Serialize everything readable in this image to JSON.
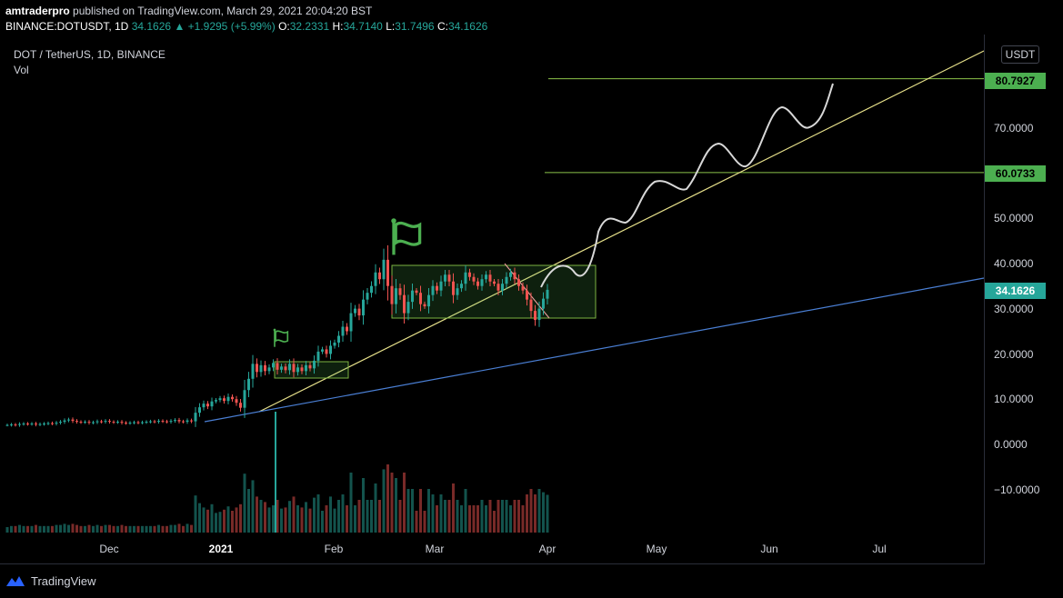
{
  "header": {
    "author": "amtraderpro",
    "published": "published on TradingView.com, March 29, 2021 20:04:20 BST",
    "symbol_line": "BINANCE:DOTUSDT, 1D",
    "last": "34.1626",
    "change": "▲ +1.9295 (+5.99%)",
    "o_label": "O:",
    "o_value": "32.2331",
    "h_label": "H:",
    "h_value": "34.7140",
    "l_label": "L:",
    "l_value": "31.7496",
    "c_label": "C:",
    "c_value": "34.1626"
  },
  "legend": {
    "symbol": "DOT / TetherUS, 1D, BINANCE",
    "volume": "Vol"
  },
  "price_axis": {
    "unit": "USDT",
    "ticks": [
      "70.0000",
      "50.0000",
      "40.0000",
      "30.0000",
      "20.0000",
      "10.0000",
      "0.0000",
      "−10.0000"
    ],
    "badges": [
      {
        "value": "80.7927",
        "color": "#4caf50"
      },
      {
        "value": "60.0733",
        "color": "#4caf50"
      },
      {
        "value": "34.1626",
        "color": "#26a69a"
      }
    ]
  },
  "time_axis": {
    "labels": [
      "Dec",
      "2021",
      "Feb",
      "Mar",
      "Apr",
      "May",
      "Jun",
      "Jul"
    ]
  },
  "brand": "TradingView",
  "chart_data": {
    "type": "candlestick",
    "symbol": "DOTUSDT",
    "timeframe": "1D",
    "y_range": [
      -20,
      83
    ],
    "last_close": 34.1626,
    "horizontal_levels": [
      80.7927,
      60.0733
    ],
    "closes": [
      4.3,
      4.4,
      4.3,
      4.5,
      4.6,
      4.5,
      4.6,
      4.4,
      4.5,
      4.6,
      4.7,
      4.6,
      4.8,
      5.0,
      5.3,
      5.5,
      5.2,
      5.0,
      4.9,
      5.0,
      4.8,
      4.9,
      5.1,
      5.0,
      5.2,
      5.0,
      4.9,
      5.0,
      4.8,
      4.7,
      4.8,
      4.9,
      4.8,
      4.9,
      5.0,
      5.1,
      5.0,
      5.2,
      5.1,
      5.0,
      5.2,
      5.4,
      5.1,
      5.0,
      5.3,
      5.1,
      7.0,
      8.2,
      9.0,
      8.4,
      9.5,
      9.8,
      10.2,
      9.6,
      10.5,
      10.0,
      9.2,
      8.1,
      12.0,
      14.5,
      17.8,
      16.0,
      17.5,
      16.2,
      17.0,
      18.0,
      16.5,
      17.2,
      16.4,
      17.8,
      16.0,
      17.0,
      16.2,
      17.5,
      16.8,
      18.5,
      20.5,
      21.0,
      20.0,
      21.8,
      22.5,
      24.0,
      26.0,
      25.0,
      29.0,
      30.0,
      28.5,
      32.0,
      33.5,
      35.0,
      38.0,
      36.5,
      40.8,
      35.0,
      31.0,
      34.5,
      33.0,
      29.0,
      31.5,
      34.0,
      33.5,
      31.0,
      30.5,
      33.0,
      35.0,
      34.0,
      36.0,
      37.5,
      36.0,
      33.0,
      34.5,
      35.5,
      38.0,
      37.0,
      36.0,
      35.0,
      36.5,
      37.5,
      36.0,
      35.5,
      34.0,
      35.5,
      37.0,
      38.0,
      36.5,
      35.0,
      34.0,
      32.0,
      29.5,
      27.5,
      30.0,
      32.2,
      34.16
    ]
  }
}
